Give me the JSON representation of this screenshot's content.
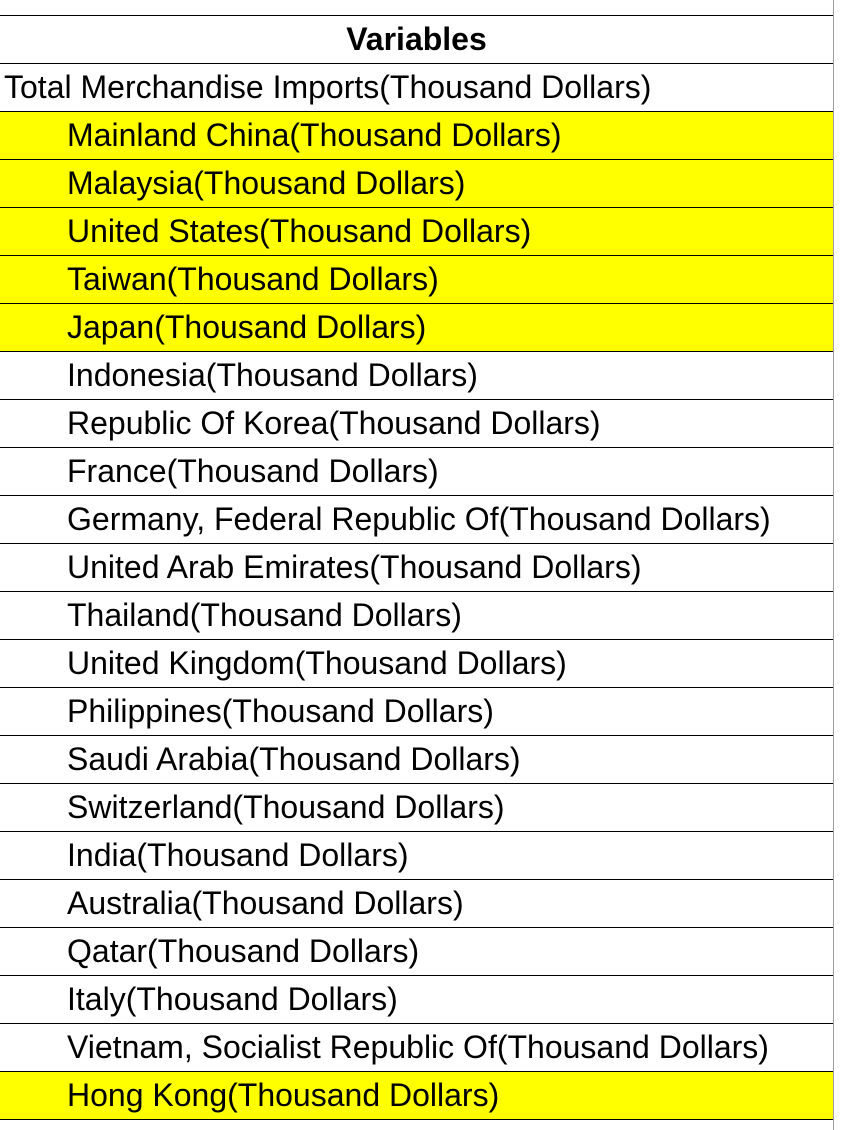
{
  "header": "Variables",
  "total": "Total Merchandise Imports(Thousand Dollars)",
  "highlight_color": "#ffff00",
  "items": [
    {
      "label": "Mainland China(Thousand Dollars)",
      "highlighted": true
    },
    {
      "label": "Malaysia(Thousand Dollars)",
      "highlighted": true
    },
    {
      "label": "United States(Thousand Dollars)",
      "highlighted": true
    },
    {
      "label": "Taiwan(Thousand Dollars)",
      "highlighted": true
    },
    {
      "label": "Japan(Thousand Dollars)",
      "highlighted": true
    },
    {
      "label": "Indonesia(Thousand Dollars)",
      "highlighted": false
    },
    {
      "label": "Republic Of Korea(Thousand Dollars)",
      "highlighted": false
    },
    {
      "label": "France(Thousand Dollars)",
      "highlighted": false
    },
    {
      "label": "Germany, Federal Republic Of(Thousand Dollars)",
      "highlighted": false
    },
    {
      "label": "United Arab Emirates(Thousand Dollars)",
      "highlighted": false
    },
    {
      "label": "Thailand(Thousand Dollars)",
      "highlighted": false
    },
    {
      "label": "United Kingdom(Thousand Dollars)",
      "highlighted": false
    },
    {
      "label": "Philippines(Thousand Dollars)",
      "highlighted": false
    },
    {
      "label": "Saudi Arabia(Thousand Dollars)",
      "highlighted": false
    },
    {
      "label": "Switzerland(Thousand Dollars)",
      "highlighted": false
    },
    {
      "label": "India(Thousand Dollars)",
      "highlighted": false
    },
    {
      "label": "Australia(Thousand Dollars)",
      "highlighted": false
    },
    {
      "label": "Qatar(Thousand Dollars)",
      "highlighted": false
    },
    {
      "label": "Italy(Thousand Dollars)",
      "highlighted": false
    },
    {
      "label": "Vietnam, Socialist Republic Of(Thousand Dollars)",
      "highlighted": false
    },
    {
      "label": "Hong Kong(Thousand Dollars)",
      "highlighted": true
    }
  ]
}
